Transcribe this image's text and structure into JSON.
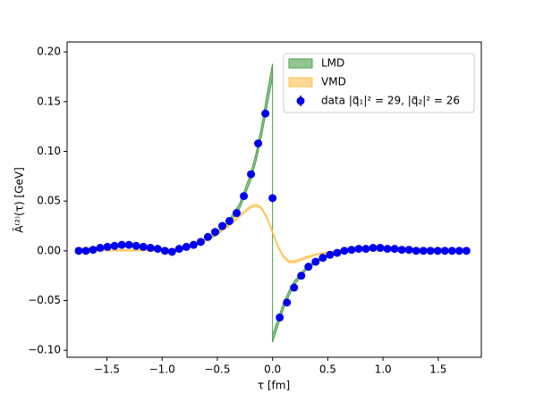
{
  "chart_data": {
    "type": "scatter",
    "xlabel": "τ [fm]",
    "ylabel": "Ã⁽²⁾(τ) [GeV]",
    "xlim": [
      -1.86,
      1.89
    ],
    "ylim": [
      -0.107,
      0.21
    ],
    "xticks": [
      {
        "value": -1.5,
        "label": "−1.5"
      },
      {
        "value": -1.0,
        "label": "−1.0"
      },
      {
        "value": -0.5,
        "label": "−0.5"
      },
      {
        "value": 0.0,
        "label": "0.0"
      },
      {
        "value": 0.5,
        "label": "0.5"
      },
      {
        "value": 1.0,
        "label": "1.0"
      },
      {
        "value": 1.5,
        "label": "1.5"
      }
    ],
    "yticks": [
      {
        "value": -0.1,
        "label": "−0.10"
      },
      {
        "value": -0.05,
        "label": "−0.05"
      },
      {
        "value": 0.0,
        "label": "0.00"
      },
      {
        "value": 0.05,
        "label": "0.05"
      },
      {
        "value": 0.1,
        "label": "0.10"
      },
      {
        "value": 0.15,
        "label": "0.15"
      },
      {
        "value": 0.2,
        "label": "0.20"
      }
    ],
    "legend": "upper right",
    "bands": [
      {
        "name": "LMD",
        "color": "#4a9e4a",
        "x": [
          -1.75,
          -1.5,
          -1.25,
          -1.0,
          -0.9,
          -0.8,
          -0.7,
          -0.6,
          -0.5,
          -0.4,
          -0.3,
          -0.2,
          -0.15,
          -0.1,
          -0.05,
          0,
          0,
          0.05,
          0.1,
          0.15,
          0.2,
          0.3,
          0.4,
          0.5,
          0.6,
          0.7,
          0.8,
          1.0,
          1.25,
          1.5,
          1.75
        ],
        "lower": [
          0.0,
          0.003,
          0.005,
          0.001,
          -0.001,
          0.002,
          0.005,
          0.01,
          0.016,
          0.026,
          0.042,
          0.07,
          0.09,
          0.115,
          0.145,
          0.175,
          -0.092,
          -0.075,
          -0.058,
          -0.045,
          -0.034,
          -0.02,
          -0.011,
          -0.005,
          -0.002,
          0.0,
          0.001,
          0.002,
          0.001,
          0.0,
          0.0
        ],
        "upper": [
          0.001,
          0.004,
          0.006,
          0.002,
          0.0,
          0.004,
          0.007,
          0.012,
          0.019,
          0.03,
          0.047,
          0.077,
          0.098,
          0.125,
          0.158,
          0.188,
          -0.085,
          -0.068,
          -0.052,
          -0.04,
          -0.03,
          -0.017,
          -0.009,
          -0.004,
          -0.001,
          0.001,
          0.002,
          0.003,
          0.002,
          0.001,
          0.0
        ]
      },
      {
        "name": "VMD",
        "color": "#ffc04d",
        "x": [
          -1.75,
          -1.5,
          -1.25,
          -1.0,
          -0.8,
          -0.6,
          -0.4,
          -0.3,
          -0.2,
          -0.15,
          -0.1,
          -0.05,
          0,
          0.05,
          0.1,
          0.15,
          0.2,
          0.3,
          0.4,
          0.6,
          0.8,
          1.0,
          1.25,
          1.5,
          1.75
        ],
        "lower": [
          0,
          0,
          0,
          0,
          0.003,
          0.01,
          0.024,
          0.034,
          0.043,
          0.045,
          0.042,
          0.032,
          0.018,
          0.003,
          -0.007,
          -0.012,
          -0.012,
          -0.008,
          -0.004,
          0,
          0.001,
          0.001,
          0,
          0,
          0
        ],
        "upper": [
          0.001,
          0.001,
          0.001,
          0.001,
          0.004,
          0.011,
          0.026,
          0.036,
          0.045,
          0.047,
          0.044,
          0.034,
          0.02,
          0.005,
          -0.005,
          -0.01,
          -0.01,
          -0.006,
          -0.003,
          0.001,
          0.002,
          0.002,
          0.001,
          0.001,
          0.001
        ]
      }
    ],
    "series": [
      {
        "name": "data |q⃗₁|² = 29, |q⃗₂|² = 26",
        "color": "#0000ee",
        "x": [
          -1.755,
          -1.69,
          -1.625,
          -1.56,
          -1.495,
          -1.43,
          -1.365,
          -1.3,
          -1.235,
          -1.17,
          -1.105,
          -1.04,
          -0.975,
          -0.91,
          -0.845,
          -0.78,
          -0.715,
          -0.65,
          -0.585,
          -0.52,
          -0.455,
          -0.39,
          -0.325,
          -0.26,
          -0.195,
          -0.13,
          -0.065,
          0,
          0.065,
          0.13,
          0.195,
          0.26,
          0.325,
          0.39,
          0.455,
          0.52,
          0.585,
          0.65,
          0.715,
          0.78,
          0.845,
          0.91,
          0.975,
          1.04,
          1.105,
          1.17,
          1.235,
          1.3,
          1.365,
          1.43,
          1.495,
          1.56,
          1.625,
          1.69,
          1.755
        ],
        "values": [
          0.0,
          0.0,
          0.001,
          0.003,
          0.004,
          0.005,
          0.006,
          0.006,
          0.005,
          0.004,
          0.003,
          0.002,
          0.0,
          -0.001,
          0.002,
          0.004,
          0.006,
          0.009,
          0.014,
          0.019,
          0.025,
          0.03,
          0.038,
          0.055,
          0.077,
          0.108,
          0.138,
          0.053,
          -0.067,
          -0.052,
          -0.037,
          -0.025,
          -0.016,
          -0.011,
          -0.007,
          -0.004,
          -0.002,
          0.0,
          0.001,
          0.002,
          0.002,
          0.003,
          0.003,
          0.002,
          0.002,
          0.001,
          0.001,
          0.0,
          0.0,
          0.0,
          0.0,
          0.0,
          0.0,
          0.0,
          0.0
        ]
      }
    ]
  }
}
